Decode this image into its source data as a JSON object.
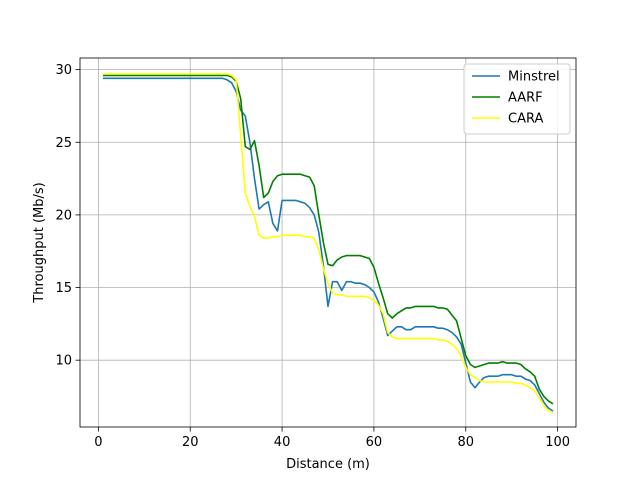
{
  "chart_data": {
    "type": "line",
    "xlabel": "Distance (m)",
    "ylabel": "Throughput (Mb/s)",
    "xlim": [
      -4,
      104
    ],
    "ylim": [
      5.4,
      30.8
    ],
    "xticks": [
      0,
      20,
      40,
      60,
      80,
      100
    ],
    "yticks": [
      10,
      15,
      20,
      25,
      30
    ],
    "grid": true,
    "legend_position": "top-right",
    "series": [
      {
        "name": "Minstrel",
        "color": "#1f77b4",
        "x": [
          1,
          10,
          20,
          27,
          28,
          29,
          30,
          31,
          32,
          33,
          34,
          35,
          36,
          37,
          38,
          39,
          40,
          41,
          42,
          43,
          44,
          45,
          46,
          47,
          48,
          49,
          50,
          51,
          52,
          53,
          54,
          55,
          56,
          57,
          58,
          59,
          60,
          61,
          62,
          63,
          64,
          65,
          66,
          67,
          68,
          69,
          70,
          71,
          72,
          73,
          74,
          75,
          76,
          77,
          78,
          79,
          80,
          81,
          82,
          83,
          84,
          85,
          86,
          87,
          88,
          89,
          90,
          91,
          92,
          93,
          94,
          95,
          96,
          97,
          98,
          99
        ],
        "values": [
          29.4,
          29.4,
          29.4,
          29.4,
          29.3,
          29.1,
          28.5,
          27.2,
          26.8,
          25.0,
          22.5,
          20.4,
          20.7,
          20.9,
          19.4,
          18.9,
          21.0,
          21.0,
          21.0,
          21.0,
          20.9,
          20.8,
          20.5,
          20.0,
          18.8,
          16.5,
          13.7,
          15.4,
          15.4,
          14.8,
          15.4,
          15.4,
          15.3,
          15.3,
          15.2,
          15.0,
          14.7,
          14.0,
          12.9,
          11.7,
          12.0,
          12.3,
          12.3,
          12.1,
          12.1,
          12.3,
          12.3,
          12.3,
          12.3,
          12.3,
          12.2,
          12.2,
          12.1,
          11.9,
          11.6,
          11.1,
          9.8,
          8.5,
          8.1,
          8.5,
          8.8,
          8.9,
          8.9,
          8.9,
          9.0,
          9.0,
          9.0,
          8.9,
          8.9,
          8.7,
          8.6,
          8.3,
          7.7,
          7.1,
          6.7,
          6.5
        ]
      },
      {
        "name": "AARF",
        "color": "#008000",
        "x": [
          1,
          10,
          20,
          27,
          28,
          29,
          30,
          31,
          32,
          33,
          34,
          35,
          36,
          37,
          38,
          39,
          40,
          41,
          42,
          43,
          44,
          45,
          46,
          47,
          48,
          49,
          50,
          51,
          52,
          53,
          54,
          55,
          56,
          57,
          58,
          59,
          60,
          61,
          62,
          63,
          64,
          65,
          66,
          67,
          68,
          69,
          70,
          71,
          72,
          73,
          74,
          75,
          76,
          77,
          78,
          79,
          80,
          81,
          82,
          83,
          84,
          85,
          86,
          87,
          88,
          89,
          90,
          91,
          92,
          93,
          94,
          95,
          96,
          97,
          98,
          99
        ],
        "values": [
          29.6,
          29.6,
          29.6,
          29.6,
          29.6,
          29.5,
          29.2,
          28.0,
          24.7,
          24.5,
          25.1,
          23.4,
          21.2,
          21.5,
          22.3,
          22.7,
          22.8,
          22.8,
          22.8,
          22.8,
          22.8,
          22.7,
          22.6,
          22.0,
          20.0,
          18.1,
          16.6,
          16.5,
          16.9,
          17.1,
          17.2,
          17.2,
          17.2,
          17.2,
          17.1,
          17.0,
          16.4,
          15.3,
          14.3,
          13.2,
          12.9,
          13.2,
          13.4,
          13.6,
          13.6,
          13.7,
          13.7,
          13.7,
          13.7,
          13.7,
          13.6,
          13.6,
          13.5,
          13.1,
          12.7,
          11.5,
          10.3,
          9.7,
          9.5,
          9.6,
          9.7,
          9.8,
          9.8,
          9.8,
          9.9,
          9.8,
          9.8,
          9.8,
          9.7,
          9.4,
          9.2,
          8.9,
          8.0,
          7.5,
          7.2,
          7.0
        ]
      },
      {
        "name": "CARA",
        "color": "#ffff00",
        "x": [
          1,
          10,
          20,
          27,
          28,
          29,
          30,
          31,
          32,
          33,
          34,
          35,
          36,
          37,
          38,
          39,
          40,
          41,
          42,
          43,
          44,
          45,
          46,
          47,
          48,
          49,
          50,
          51,
          52,
          53,
          54,
          55,
          56,
          57,
          58,
          59,
          60,
          61,
          62,
          63,
          64,
          65,
          66,
          67,
          68,
          69,
          70,
          71,
          72,
          73,
          74,
          75,
          76,
          77,
          78,
          79,
          80,
          81,
          82,
          83,
          84,
          85,
          86,
          87,
          88,
          89,
          90,
          91,
          92,
          93,
          94,
          95,
          96,
          97,
          98,
          99
        ],
        "values": [
          29.7,
          29.7,
          29.7,
          29.7,
          29.7,
          29.6,
          29.3,
          25.5,
          21.5,
          20.6,
          19.9,
          18.6,
          18.4,
          18.4,
          18.5,
          18.5,
          18.6,
          18.6,
          18.6,
          18.6,
          18.6,
          18.5,
          18.5,
          18.4,
          17.6,
          16.3,
          15.3,
          14.6,
          14.5,
          14.5,
          14.4,
          14.4,
          14.4,
          14.4,
          14.4,
          14.3,
          14.1,
          13.8,
          13.2,
          11.9,
          11.6,
          11.5,
          11.5,
          11.5,
          11.5,
          11.5,
          11.5,
          11.5,
          11.5,
          11.5,
          11.4,
          11.4,
          11.3,
          11.1,
          10.8,
          10.3,
          9.5,
          9.0,
          8.8,
          8.6,
          8.5,
          8.5,
          8.5,
          8.5,
          8.5,
          8.5,
          8.5,
          8.4,
          8.4,
          8.3,
          8.1,
          7.9,
          7.4,
          6.9,
          6.5,
          6.4
        ]
      }
    ]
  }
}
